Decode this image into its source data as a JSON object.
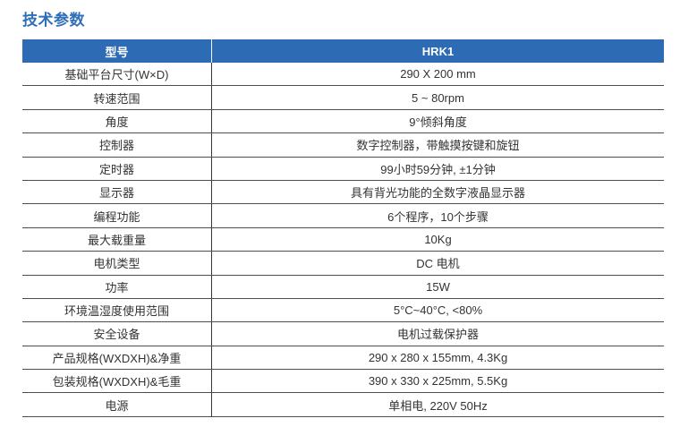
{
  "page": {
    "title": "技术参数"
  },
  "colors": {
    "header_bg": "#2D6CB4",
    "header_text": "#FFFFFF",
    "title_text": "#2E6FB7",
    "row_border": "#4D4D4D",
    "column_divider": "#383838",
    "body_text": "#333333",
    "page_bg": "#FFFFFF"
  },
  "table": {
    "header": {
      "model_label": "型号",
      "model_value": "HRK1"
    },
    "rows": [
      {
        "label": "基础平台尺寸(W×D)",
        "value": "290 X 200 mm"
      },
      {
        "label": "转速范围",
        "value": "5 ~ 80rpm"
      },
      {
        "label": "角度",
        "value": "9°倾斜角度"
      },
      {
        "label": "控制器",
        "value": "数字控制器，带触摸按键和旋钮"
      },
      {
        "label": "定时器",
        "value": "99小时59分钟, ±1分钟"
      },
      {
        "label": "显示器",
        "value": "具有背光功能的全数字液晶显示器"
      },
      {
        "label": "编程功能",
        "value": "6个程序，10个步骤"
      },
      {
        "label": "最大载重量",
        "value": "10Kg"
      },
      {
        "label": "电机类型",
        "value": "DC 电机"
      },
      {
        "label": "功率",
        "value": "15W"
      },
      {
        "label": "环境温湿度使用范围",
        "value": "5°C~40°C, <80%"
      },
      {
        "label": "安全设备",
        "value": "电机过载保护器"
      },
      {
        "label": "产品规格(WXDXH)&净重",
        "value": "290 x 280 x 155mm, 4.3Kg"
      },
      {
        "label": "包装规格(WXDXH)&毛重",
        "value": "390 x 330 x 225mm, 5.5Kg"
      },
      {
        "label": "电源",
        "value": "单相电, 220V 50Hz"
      }
    ]
  }
}
